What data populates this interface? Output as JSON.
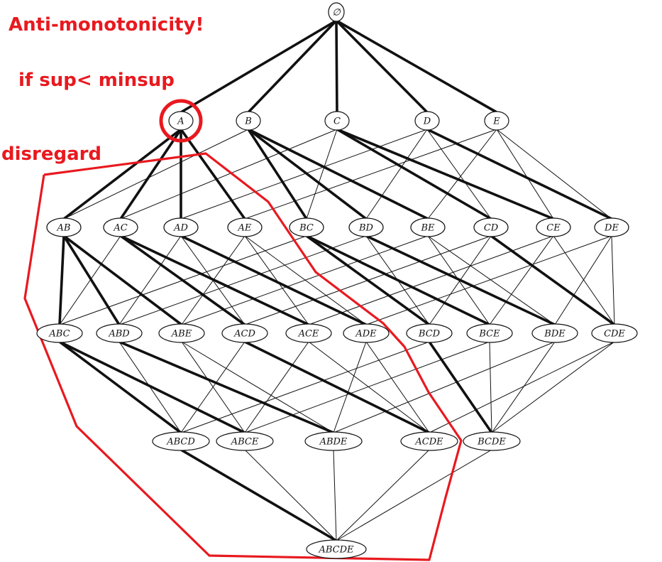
{
  "annotations": {
    "title": "Anti-monotonicity!",
    "condition": "if sup< minsup",
    "action": "disregard"
  },
  "colors": {
    "annotation": "#e8191f",
    "highlight": "#e8191f",
    "edge": "#111111",
    "node_fill": "#ffffff"
  },
  "lattice": {
    "items": [
      "A",
      "B",
      "C",
      "D",
      "E"
    ],
    "levels": [
      [
        "∅"
      ],
      [
        "A",
        "B",
        "C",
        "D",
        "E"
      ],
      [
        "AB",
        "AC",
        "AD",
        "AE",
        "BC",
        "BD",
        "BE",
        "CD",
        "CE",
        "DE"
      ],
      [
        "ABC",
        "ABD",
        "ABE",
        "ACD",
        "ACE",
        "ADE",
        "BCD",
        "BCE",
        "BDE",
        "CDE"
      ],
      [
        "ABCD",
        "ABCE",
        "ABDE",
        "ACDE",
        "BCDE"
      ],
      [
        "ABCDE"
      ]
    ],
    "bold_edges": [
      [
        "∅",
        "A"
      ],
      [
        "∅",
        "B"
      ],
      [
        "∅",
        "C"
      ],
      [
        "∅",
        "D"
      ],
      [
        "∅",
        "E"
      ],
      [
        "A",
        "AB"
      ],
      [
        "A",
        "AC"
      ],
      [
        "A",
        "AD"
      ],
      [
        "A",
        "AE"
      ],
      [
        "B",
        "BC"
      ],
      [
        "B",
        "BD"
      ],
      [
        "B",
        "BE"
      ],
      [
        "C",
        "CD"
      ],
      [
        "C",
        "CE"
      ],
      [
        "D",
        "DE"
      ],
      [
        "AB",
        "ABC"
      ],
      [
        "AB",
        "ABD"
      ],
      [
        "AB",
        "ABE"
      ],
      [
        "AC",
        "ACD"
      ],
      [
        "AC",
        "ACE"
      ],
      [
        "AD",
        "ADE"
      ],
      [
        "BC",
        "BCD"
      ],
      [
        "BC",
        "BCE"
      ],
      [
        "BD",
        "BDE"
      ],
      [
        "CD",
        "CDE"
      ],
      [
        "ABC",
        "ABCD"
      ],
      [
        "ABC",
        "ABCE"
      ],
      [
        "ABD",
        "ABDE"
      ],
      [
        "ACD",
        "ACDE"
      ],
      [
        "BCD",
        "BCDE"
      ],
      [
        "ABCD",
        "ABCDE"
      ]
    ],
    "pruned_node": "A"
  }
}
